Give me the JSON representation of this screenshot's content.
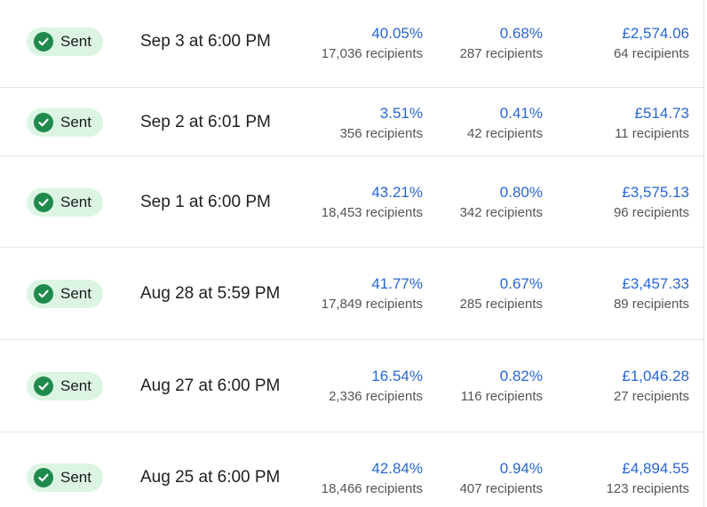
{
  "rows": [
    {
      "status": "Sent",
      "date": "Sep 3 at 6:00 PM",
      "open_rate": "40.05%",
      "open_recipients": "17,036 recipients",
      "click_rate": "0.68%",
      "click_recipients": "287 recipients",
      "revenue": "£2,574.06",
      "revenue_recipients": "64 recipients"
    },
    {
      "status": "Sent",
      "date": "Sep 2 at 6:01 PM",
      "open_rate": "3.51%",
      "open_recipients": "356 recipients",
      "click_rate": "0.41%",
      "click_recipients": "42 recipients",
      "revenue": "£514.73",
      "revenue_recipients": "11 recipients"
    },
    {
      "status": "Sent",
      "date": "Sep 1 at 6:00 PM",
      "open_rate": "43.21%",
      "open_recipients": "18,453 recipients",
      "click_rate": "0.80%",
      "click_recipients": "342 recipients",
      "revenue": "£3,575.13",
      "revenue_recipients": "96 recipients"
    },
    {
      "status": "Sent",
      "date": "Aug 28 at 5:59 PM",
      "open_rate": "41.77%",
      "open_recipients": "17,849 recipients",
      "click_rate": "0.67%",
      "click_recipients": "285 recipients",
      "revenue": "£3,457.33",
      "revenue_recipients": "89 recipients"
    },
    {
      "status": "Sent",
      "date": "Aug 27 at 6:00 PM",
      "open_rate": "16.54%",
      "open_recipients": "2,336 recipients",
      "click_rate": "0.82%",
      "click_recipients": "116 recipients",
      "revenue": "£1,046.28",
      "revenue_recipients": "27 recipients"
    },
    {
      "status": "Sent",
      "date": "Aug 25 at 6:00 PM",
      "open_rate": "42.84%",
      "open_recipients": "18,466 recipients",
      "click_rate": "0.94%",
      "click_recipients": "407 recipients",
      "revenue": "£4,894.55",
      "revenue_recipients": "123 recipients"
    }
  ],
  "icons": {
    "status": "checkmark-circle-icon"
  },
  "colors": {
    "badge_bg": "#dcf5e3",
    "check": "#1f8a4c",
    "link": "#2766d3"
  }
}
